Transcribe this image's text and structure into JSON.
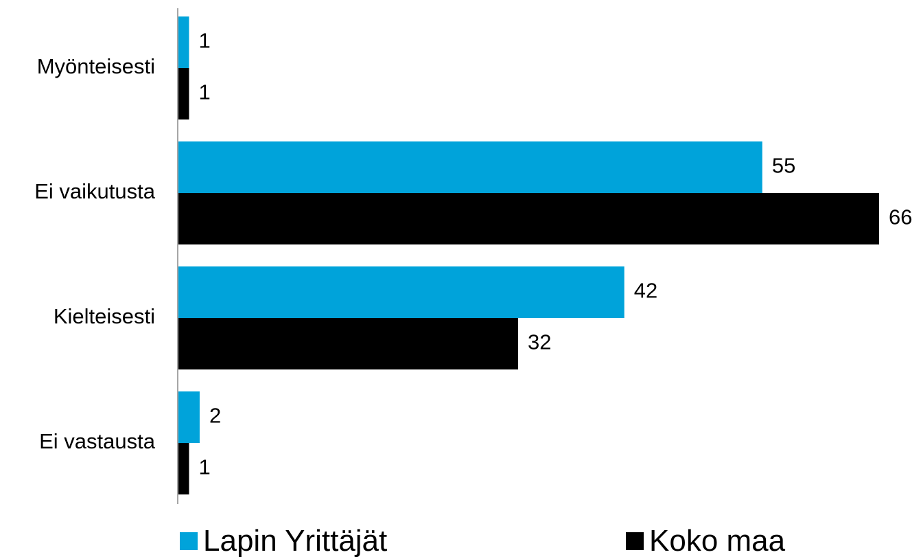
{
  "chart_data": {
    "type": "bar",
    "orientation": "horizontal",
    "categories": [
      "Myönteisesti",
      "Ei vaikutusta",
      "Kielteisesti",
      "Ei vastausta"
    ],
    "series": [
      {
        "name": "Lapin Yrittäjät",
        "color": "#00A3DA",
        "values": [
          1,
          55,
          42,
          2
        ]
      },
      {
        "name": "Koko maa",
        "color": "#000000",
        "values": [
          1,
          66,
          32,
          1
        ]
      }
    ],
    "xlim": [
      0,
      66
    ],
    "grid": false,
    "legend": "bottom"
  }
}
